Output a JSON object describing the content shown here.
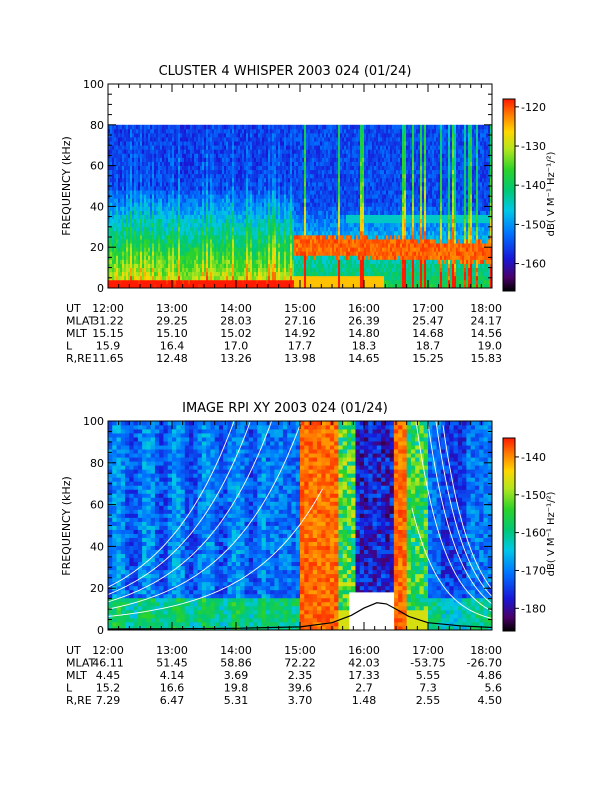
{
  "chart_data": [
    {
      "type": "heatmap",
      "title": "CLUSTER 4 WHISPER 2003 024 (01/24)",
      "ylabel": "FREQUENCY (kHz)",
      "ylim": [
        0,
        100
      ],
      "y_ticks": [
        "0",
        "20",
        "40",
        "60",
        "80",
        "100"
      ],
      "data_top_khz": 80,
      "x_ticks": [
        "12:00",
        "13:00",
        "14:00",
        "15:00",
        "16:00",
        "17:00",
        "18:00"
      ],
      "x_range_hours": [
        12,
        18
      ],
      "colorbar": {
        "label": "dB( V M⁻¹ Hz⁻¹/²)",
        "range": [
          -167,
          -118
        ],
        "ticks": [
          "-120",
          "-130",
          "-140",
          "-150",
          "-160"
        ],
        "tick_values": [
          -120,
          -130,
          -140,
          -150,
          -160
        ]
      },
      "ephemeris": {
        "labels": [
          "UT",
          "MLAT",
          "MLT",
          "L",
          "R,RE"
        ],
        "rows": [
          [
            "12:00",
            "13:00",
            "14:00",
            "15:00",
            "16:00",
            "17:00",
            "18:00"
          ],
          [
            "31.22",
            "29.25",
            "28.03",
            "27.16",
            "26.39",
            "25.47",
            "24.17"
          ],
          [
            "15.15",
            "15.10",
            "15.02",
            "14.92",
            "14.80",
            "14.68",
            "14.56"
          ],
          [
            "15.9",
            "16.4",
            "17.0",
            "17.7",
            "18.3",
            "18.7",
            "19.0"
          ],
          [
            "11.65",
            "12.48",
            "13.26",
            "13.98",
            "14.65",
            "15.25",
            "15.83"
          ]
        ]
      }
    },
    {
      "type": "heatmap",
      "title": "IMAGE RPI XY 2003 024 (01/24)",
      "ylabel": "FREQUENCY (kHz)",
      "ylim": [
        0,
        100
      ],
      "y_ticks": [
        "0",
        "20",
        "40",
        "60",
        "80",
        "100"
      ],
      "x_ticks": [
        "12:00",
        "13:00",
        "14:00",
        "15:00",
        "16:00",
        "17:00",
        "18:00"
      ],
      "x_range_hours": [
        12,
        18
      ],
      "colorbar": {
        "label": "dB( V M⁻¹ Hz⁻¹/²)",
        "range": [
          -186,
          -135
        ],
        "ticks": [
          "-140",
          "-150",
          "-160",
          "-170",
          "-180"
        ],
        "tick_values": [
          -140,
          -150,
          -160,
          -170,
          -180
        ]
      },
      "overlay": {
        "gap_box": {
          "t_start": 15.77,
          "t_end": 16.47,
          "f_max_khz": 18
        },
        "electron_gyrofrequency_curve": [
          [
            12.0,
            0.5
          ],
          [
            13.0,
            0.6
          ],
          [
            14.0,
            0.8
          ],
          [
            15.0,
            1.5
          ],
          [
            15.5,
            3.5
          ],
          [
            15.8,
            7
          ],
          [
            16.0,
            10.5
          ],
          [
            16.2,
            13
          ],
          [
            16.35,
            12.5
          ],
          [
            16.5,
            10
          ],
          [
            16.7,
            6.5
          ],
          [
            17.0,
            3.5
          ],
          [
            17.5,
            2
          ],
          [
            18.0,
            1.2
          ]
        ]
      },
      "ephemeris": {
        "labels": [
          "UT",
          "MLAT",
          "MLT",
          "L",
          "R,RE"
        ],
        "rows": [
          [
            "12:00",
            "13:00",
            "14:00",
            "15:00",
            "16:00",
            "17:00",
            "18:00"
          ],
          [
            "46.11",
            "51.45",
            "58.86",
            "72.22",
            "42.03",
            "-53.75",
            "-26.70"
          ],
          [
            "4.45",
            "4.14",
            "3.69",
            "2.35",
            "17.33",
            "5.55",
            "4.86"
          ],
          [
            "15.2",
            "16.6",
            "19.8",
            "39.6",
            "2.7",
            "7.3",
            "5.6"
          ],
          [
            "7.29",
            "6.47",
            "5.31",
            "3.70",
            "1.48",
            "2.55",
            "4.50"
          ]
        ]
      }
    }
  ]
}
